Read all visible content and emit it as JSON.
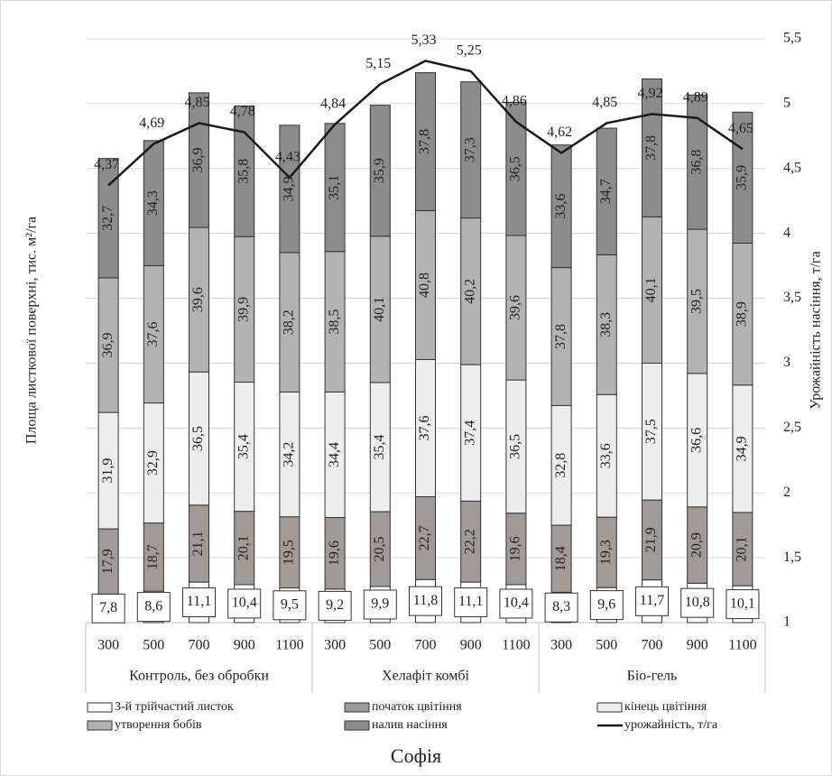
{
  "chart_data": {
    "type": "bar",
    "x_title": "Софія",
    "y_title": "Площа листкової поверхні, тис. м²/га",
    "y2_title": "Урожайність насіння, т/га",
    "categories": [
      "300",
      "500",
      "700",
      "900",
      "1100",
      "300",
      "500",
      "700",
      "900",
      "1100",
      "300",
      "500",
      "700",
      "900",
      "1100"
    ],
    "groups": [
      "Контроль, без обробки",
      "Хелафіт комбі",
      "Біо-гель"
    ],
    "ylim": [
      0,
      160
    ],
    "y2lim": [
      1,
      5.5
    ],
    "y2ticks": [
      1,
      {
        "value": 1.5,
        "label": "1,5"
      },
      2,
      {
        "value": 2.5,
        "label": "2,5"
      },
      3,
      {
        "value": 3.5,
        "label": "3,5"
      },
      4,
      {
        "value": 4.5,
        "label": "4,5"
      },
      5,
      {
        "value": 5.5,
        "label": "5,5"
      }
    ],
    "grid": true,
    "series": [
      {
        "name": "3-й трійчастий листок",
        "color": "#ffffff",
        "values": [
          7.8,
          8.6,
          11.1,
          10.4,
          9.5,
          9.2,
          9.9,
          11.8,
          11.1,
          10.4,
          8.3,
          9.6,
          11.7,
          10.8,
          10.1
        ],
        "value_labels": [
          "7,8",
          "8,6",
          "11,1",
          "10,4",
          "9,5",
          "9,2",
          "9,9",
          "11,8",
          "11,1",
          "10,4",
          "8,3",
          "9,6",
          "11,7",
          "10,8",
          "10,1"
        ]
      },
      {
        "name": "початок цвітіння",
        "color": "#a19b97",
        "values": [
          17.9,
          18.7,
          21.1,
          20.1,
          19.5,
          19.6,
          20.5,
          22.7,
          22.2,
          19.6,
          18.4,
          19.3,
          21.9,
          20.9,
          20.1
        ],
        "value_labels": [
          "17,9",
          "18,7",
          "21,1",
          "20,1",
          "19,5",
          "19,6",
          "20,5",
          "22,7",
          "22,2",
          "19,6",
          "18,4",
          "19,3",
          "21,9",
          "20,9",
          "20,1"
        ]
      },
      {
        "name": "кінець цвітіння",
        "color": "#ededed",
        "values": [
          31.9,
          32.9,
          36.5,
          35.4,
          34.2,
          34.4,
          35.4,
          37.6,
          37.4,
          36.5,
          32.8,
          33.6,
          37.5,
          36.6,
          34.9
        ],
        "value_labels": [
          "31,9",
          "32,9",
          "36,5",
          "35,4",
          "34,2",
          "34,4",
          "35,4",
          "37,6",
          "37,4",
          "36,5",
          "32,8",
          "33,6",
          "37,5",
          "36,6",
          "34,9"
        ]
      },
      {
        "name": "утворення бобів",
        "color": "#b3b3b3",
        "values": [
          36.9,
          37.6,
          39.6,
          39.9,
          38.2,
          38.5,
          40.1,
          40.8,
          40.2,
          39.6,
          37.8,
          38.3,
          40.1,
          39.5,
          38.9
        ],
        "value_labels": [
          "36,9",
          "37,6",
          "39,6",
          "39,9",
          "38,2",
          "38,5",
          "40,1",
          "40,8",
          "40,2",
          "39,6",
          "37,8",
          "38,3",
          "40,1",
          "39,5",
          "38,9"
        ]
      },
      {
        "name": "налив насіння",
        "color": "#8c8c8c",
        "values": [
          32.7,
          34.3,
          36.9,
          35.8,
          34.9,
          35.1,
          35.9,
          37.8,
          37.3,
          36.5,
          33.6,
          34.7,
          37.8,
          36.8,
          35.9
        ],
        "value_labels": [
          "32,7",
          "34,3",
          "36,9",
          "35,8",
          "34,9",
          "35,1",
          "35,9",
          "37,8",
          "37,3",
          "36,5",
          "33,6",
          "34,7",
          "37,8",
          "36,8",
          "35,9"
        ]
      },
      {
        "name": "урожайність, т/га",
        "color": "#1a1a1a",
        "type": "line",
        "axis": "y2",
        "values": [
          4.37,
          4.69,
          4.85,
          4.78,
          4.43,
          4.84,
          5.15,
          5.33,
          5.25,
          4.86,
          4.62,
          4.85,
          4.92,
          4.89,
          4.65
        ],
        "value_labels": [
          "4,37",
          "4,69",
          "4,85",
          "4,78",
          "4,43",
          "4,84",
          "5,15",
          "5,33",
          "5,25",
          "4,86",
          "4,62",
          "4,85",
          "4,92",
          "4,89",
          "4,65"
        ]
      }
    ]
  }
}
